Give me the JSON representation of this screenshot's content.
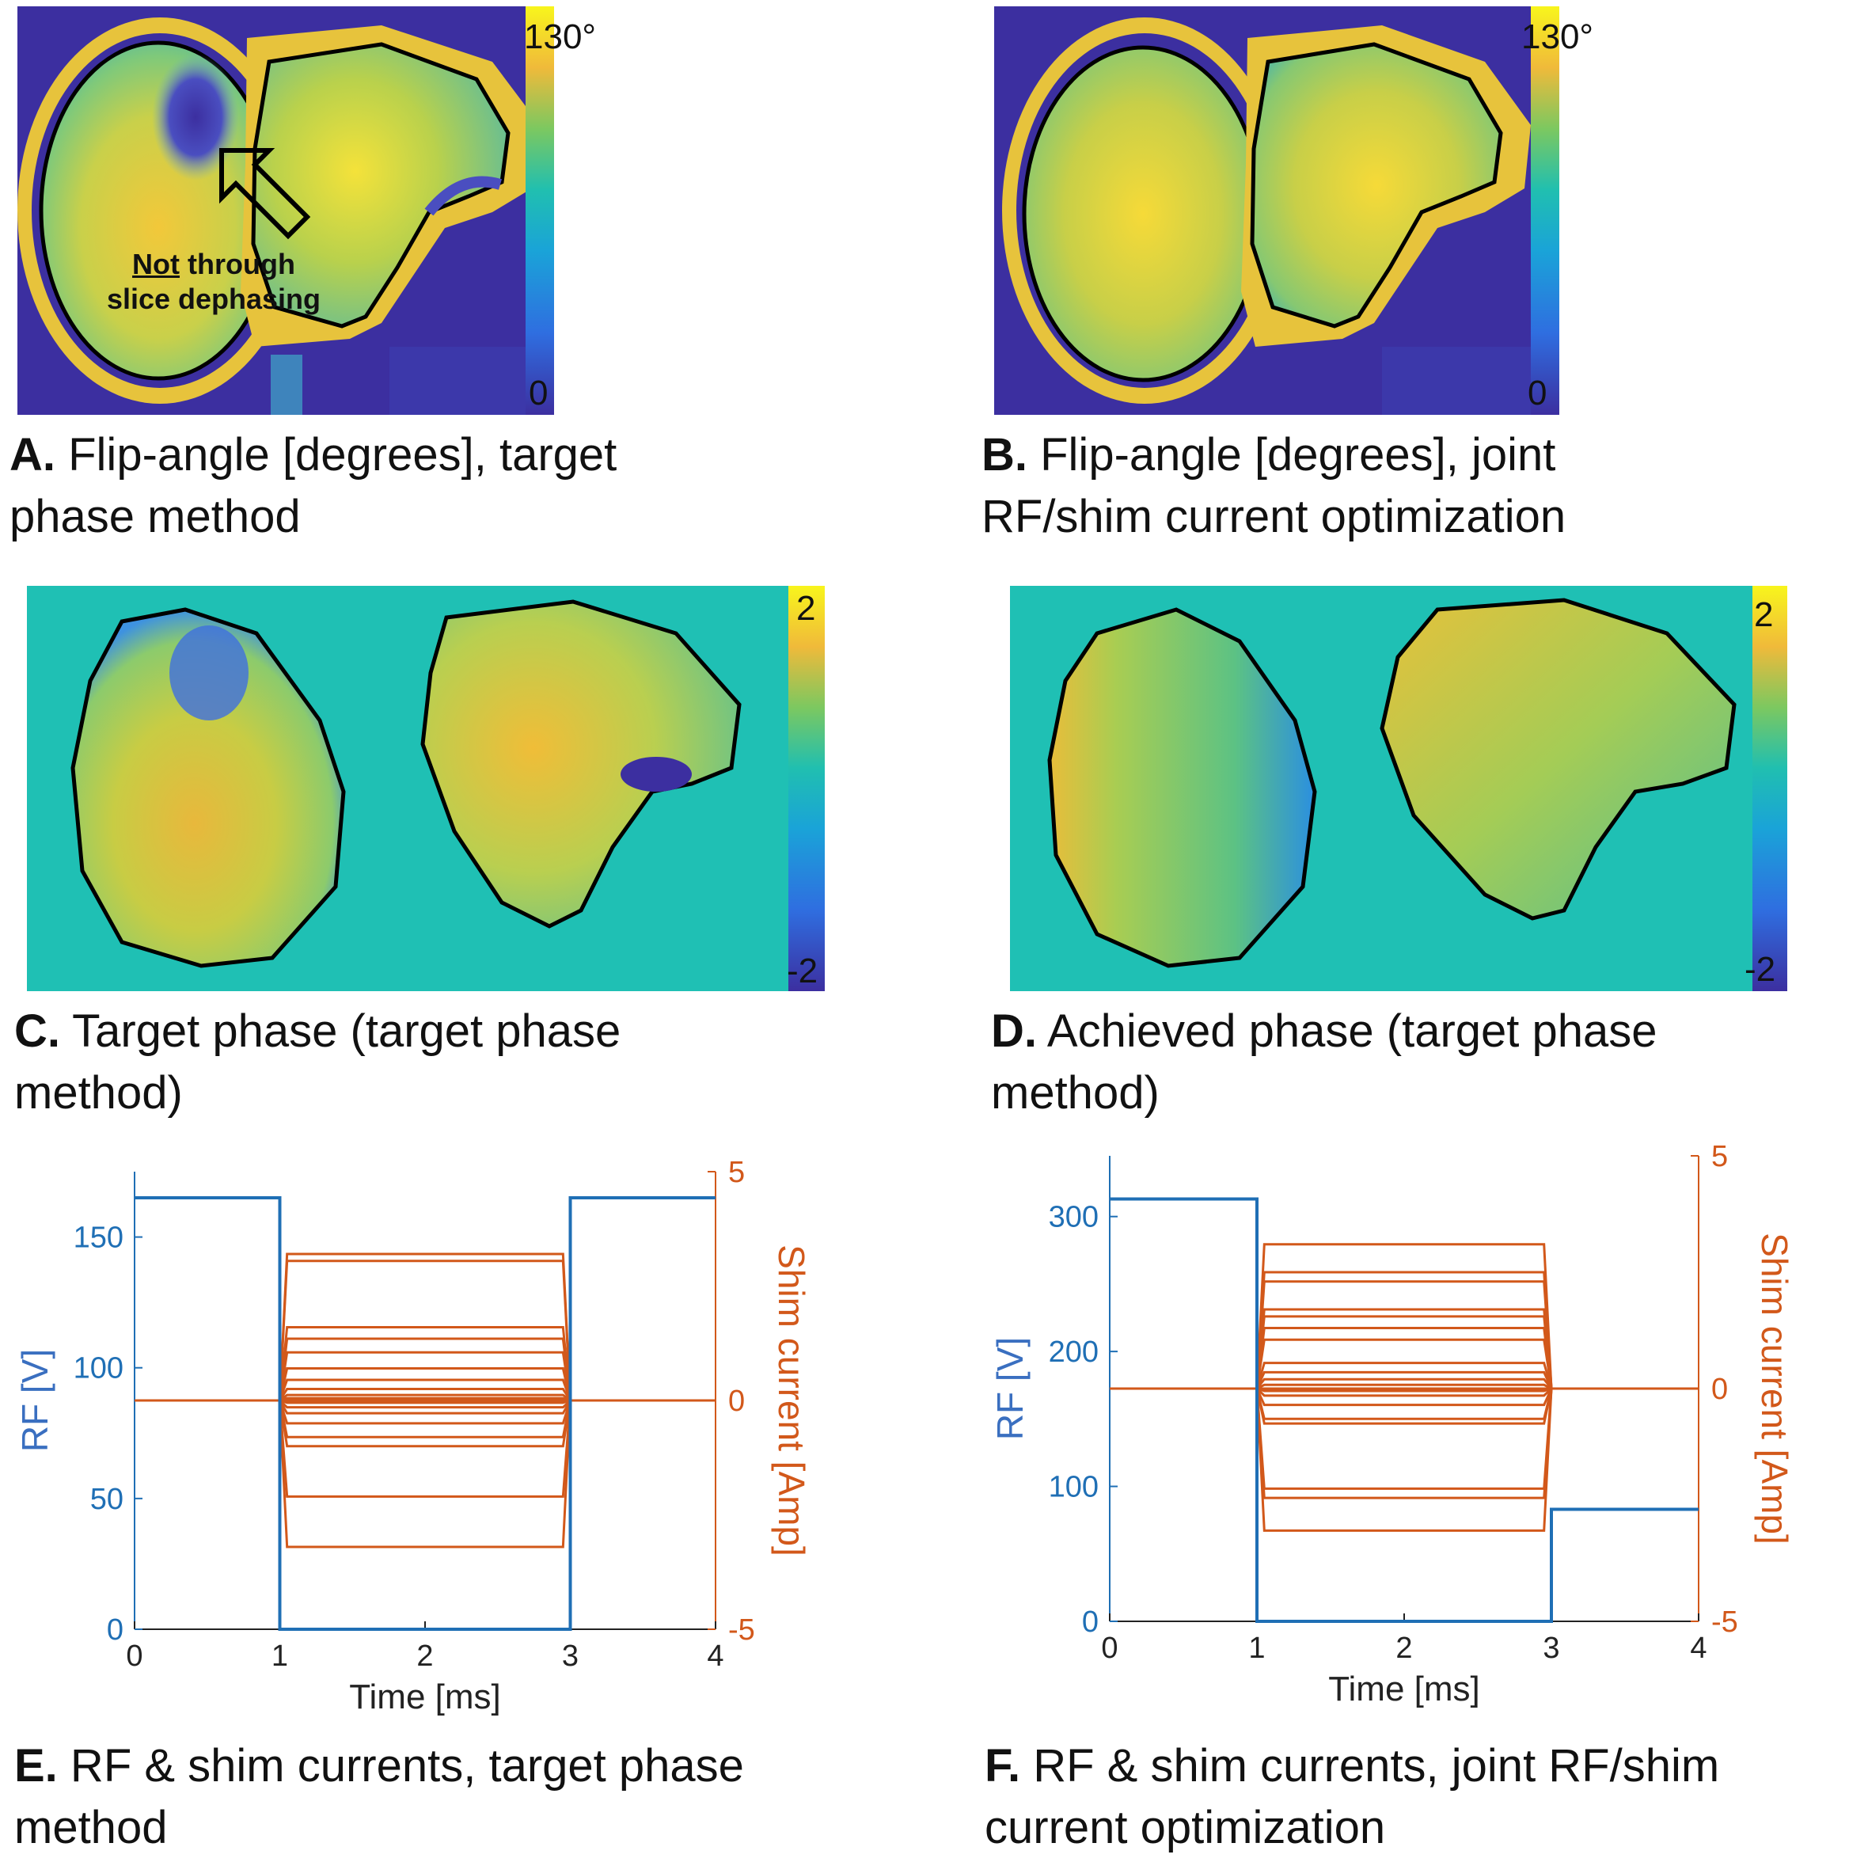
{
  "colors": {
    "dark_bg": "#3c2fa0",
    "cyan_bg": "#1fc0b4",
    "rf": "#1f6fb5",
    "shim": "#d2581a"
  },
  "panels": {
    "A": {
      "letter": "A.",
      "caption_line1": " Flip-angle [degrees], target",
      "caption_line2": "phase method",
      "cbar_max": "130°",
      "cbar_min": "0",
      "annotation_underlined": "Not",
      "annotation_rest1": " through",
      "annotation_line2": "slice dephasing"
    },
    "B": {
      "letter": "B.",
      "caption_line1": " Flip-angle [degrees], joint",
      "caption_line2": "RF/shim current optimization",
      "cbar_max": "130°",
      "cbar_min": "0"
    },
    "C": {
      "letter": "C.",
      "caption_line1": " Target phase (target phase",
      "caption_line2": "method)",
      "cbar_max": "2",
      "cbar_min": "-2"
    },
    "D": {
      "letter": "D.",
      "caption_line1": " Achieved phase (target phase",
      "caption_line2": "method)",
      "cbar_max": "2",
      "cbar_min": "-2"
    },
    "E": {
      "letter": "E.",
      "caption_line1": " RF & shim currents, target phase",
      "caption_line2": "method"
    },
    "F": {
      "letter": "F.",
      "caption_line1": " RF & shim currents, joint RF/shim",
      "caption_line2": "current optimization"
    }
  },
  "chart_data": [
    {
      "type": "line",
      "panel": "E",
      "xlabel": "Time [ms]",
      "ylabel": "RF [V]",
      "y2label": "Shim current [Amp]",
      "xlim": [
        0,
        4
      ],
      "xticks": [
        0,
        1,
        2,
        3,
        4
      ],
      "ylim": [
        0,
        175
      ],
      "yticks": [
        0,
        50,
        100,
        150
      ],
      "y2lim": [
        -5,
        5
      ],
      "y2ticks": [
        -5,
        0,
        5
      ],
      "rf": {
        "x": [
          0,
          1,
          1,
          3,
          3,
          4
        ],
        "y": [
          165,
          165,
          0,
          0,
          165,
          165
        ]
      },
      "shim_levels": [
        3.2,
        3.05,
        1.6,
        1.35,
        1.05,
        0.7,
        0.45,
        0.25,
        0.12,
        0.05,
        -0.05,
        -0.15,
        -0.28,
        -0.5,
        -0.8,
        -1.0,
        -2.1,
        -3.2
      ]
    },
    {
      "type": "line",
      "panel": "F",
      "xlabel": "Time [ms]",
      "ylabel": "RF [V]",
      "y2label": "Shim current [Amp]",
      "xlim": [
        0,
        4
      ],
      "xticks": [
        0,
        1,
        2,
        3,
        4
      ],
      "ylim": [
        0,
        345
      ],
      "yticks": [
        0,
        100,
        200,
        300
      ],
      "y2lim": [
        -5,
        5
      ],
      "y2ticks": [
        -5,
        0,
        5
      ],
      "rf": {
        "x": [
          0,
          1,
          1,
          3,
          3,
          4
        ],
        "y": [
          313,
          313,
          0,
          0,
          83,
          83
        ]
      },
      "shim_levels": [
        3.1,
        2.5,
        2.3,
        1.7,
        1.55,
        1.3,
        1.05,
        0.55,
        0.35,
        0.2,
        0.08,
        -0.05,
        -0.15,
        -0.35,
        -0.65,
        -0.75,
        -2.15,
        -2.35,
        -3.05
      ]
    }
  ]
}
